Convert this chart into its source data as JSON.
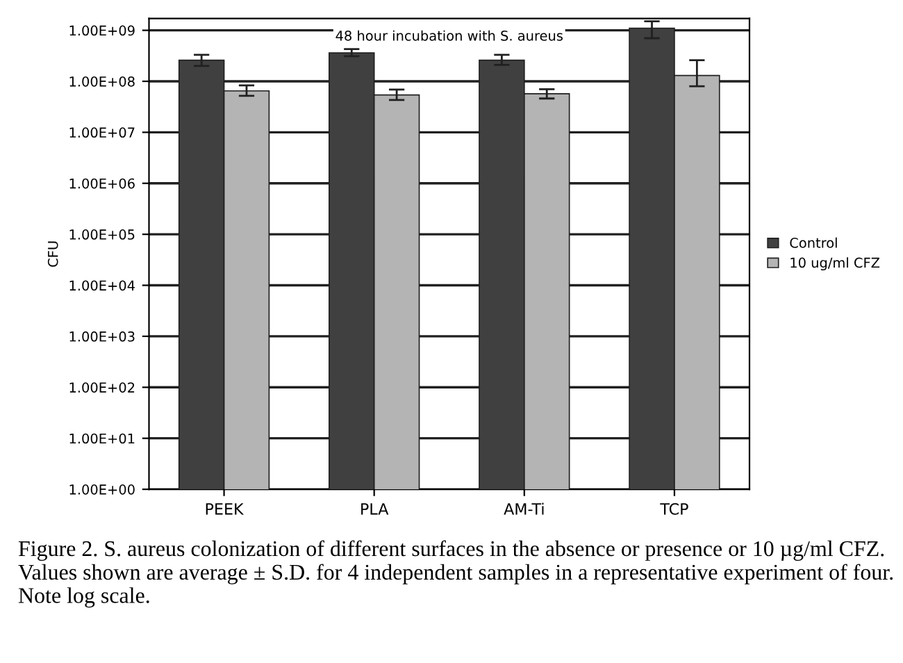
{
  "chart_data": {
    "type": "bar",
    "title": "48 hour incubation with S. aureus",
    "ylabel": "CFU",
    "categories": [
      "PEEK",
      "PLA",
      "AM-Ti",
      "TCP"
    ],
    "series": [
      {
        "name": "Control",
        "color": "#404040",
        "values": [
          260000000.0,
          360000000.0,
          260000000.0,
          1100000000.0
        ],
        "errors": [
          [
            200000000.0,
            330000000.0
          ],
          [
            310000000.0,
            430000000.0
          ],
          [
            210000000.0,
            330000000.0
          ],
          [
            700000000.0,
            1500000000.0
          ]
        ]
      },
      {
        "name": "10 ug/ml CFZ",
        "color": "#b4b4b4",
        "values": [
          65000000.0,
          54000000.0,
          57000000.0,
          130000000.0
        ],
        "errors": [
          [
            52000000.0,
            83000000.0
          ],
          [
            43000000.0,
            69000000.0
          ],
          [
            46000000.0,
            70000000.0
          ],
          [
            80000000.0,
            260000000.0
          ]
        ]
      }
    ],
    "log": true,
    "ylim": [
      1,
      1700000000.0
    ],
    "yticks": [
      {
        "value": 1,
        "label": "1.00E+00"
      },
      {
        "value": 10,
        "label": "1.00E+01"
      },
      {
        "value": 100,
        "label": "1.00E+02"
      },
      {
        "value": 1000,
        "label": "1.00E+03"
      },
      {
        "value": 10000,
        "label": "1.00E+04"
      },
      {
        "value": 100000,
        "label": "1.00E+05"
      },
      {
        "value": 1000000,
        "label": "1.00E+06"
      },
      {
        "value": 10000000,
        "label": "1.00E+07"
      },
      {
        "value": 100000000,
        "label": "1.00E+08"
      },
      {
        "value": 1000000000,
        "label": "1.00E+09"
      }
    ],
    "grid": "y",
    "legend": "right",
    "annotations": [
      "Figure 2. S. aureus colonization of different surfaces in the absence or presence or 10 µg/ml CFZ. Values shown are average ± S.D. for 4 independent samples in a representative experiment of four. Note log scale."
    ]
  }
}
